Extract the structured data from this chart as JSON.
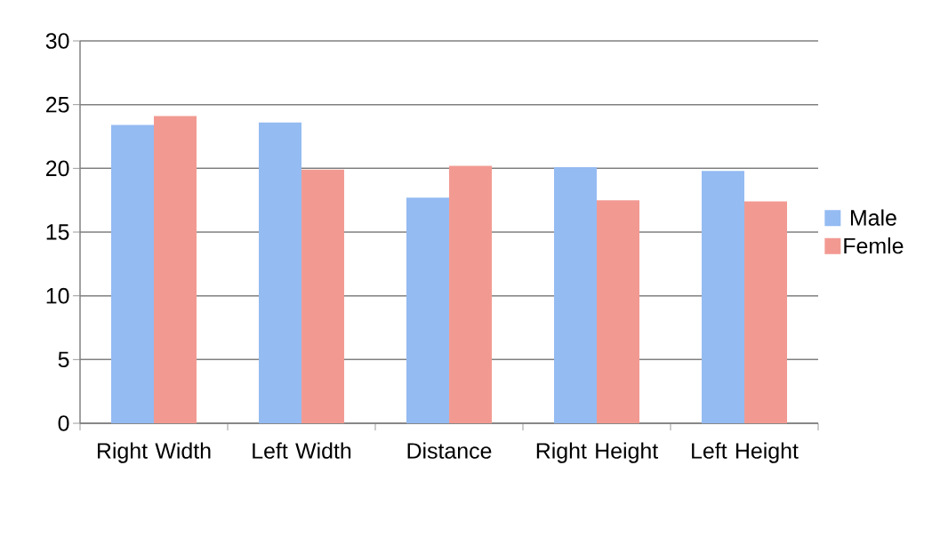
{
  "chart_data": {
    "type": "bar",
    "categories": [
      "Right Width",
      "Left Width",
      "Distance",
      "Right Height",
      "Left Height"
    ],
    "series": [
      {
        "name": "Male",
        "color": "#94bbf2",
        "values": [
          23.4,
          23.6,
          17.7,
          20.1,
          19.8
        ]
      },
      {
        "name": "Femle",
        "color": "#f29a92",
        "values": [
          24.1,
          19.9,
          20.2,
          17.5,
          17.4
        ]
      }
    ],
    "ylim": [
      0,
      30
    ],
    "yticks": [
      0,
      5,
      10,
      15,
      20,
      25,
      30
    ],
    "grid": "y",
    "legend": "right"
  }
}
